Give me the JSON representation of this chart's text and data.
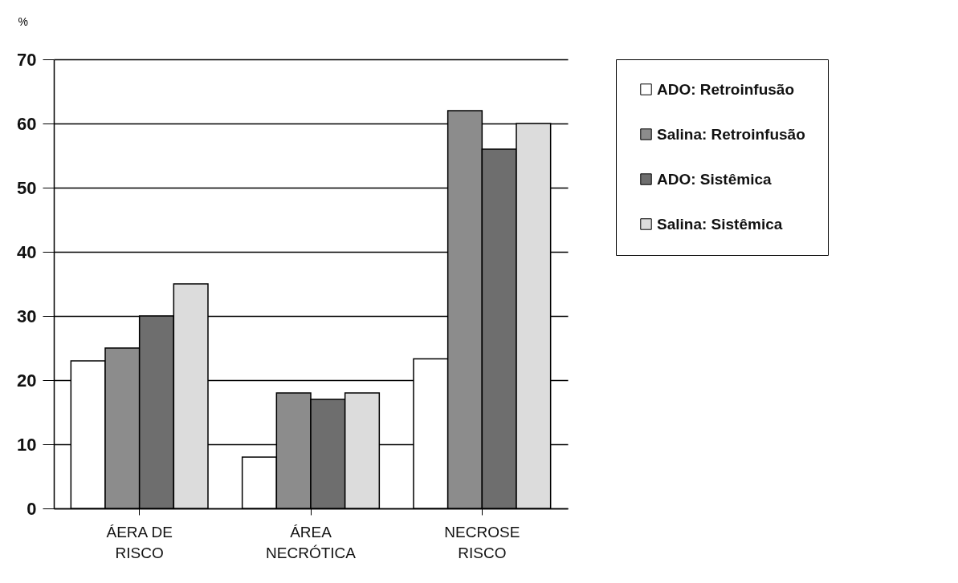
{
  "chart_data": {
    "type": "bar",
    "ylabel": "%",
    "categories": [
      "ÁERA DE RISCO",
      "ÁREA NECRÓTICA",
      "NECROSE RISCO"
    ],
    "series": [
      {
        "name": "ADO: Retroinfusão",
        "color": "#ffffff",
        "values": [
          23,
          8,
          23.3
        ]
      },
      {
        "name": "Salina: Retroinfusão",
        "color": "#8c8c8c",
        "values": [
          25,
          18,
          62
        ]
      },
      {
        "name": "ADO: Sistêmica",
        "color": "#6e6e6e",
        "values": [
          30,
          17,
          56
        ]
      },
      {
        "name": "Salina: Sistêmica",
        "color": "#dcdcdc",
        "values": [
          35,
          18,
          60
        ]
      }
    ],
    "ylim": [
      0,
      70
    ],
    "yticks": [
      0,
      10,
      20,
      30,
      40,
      50,
      60,
      70
    ],
    "grid": "y",
    "legend": "right"
  }
}
